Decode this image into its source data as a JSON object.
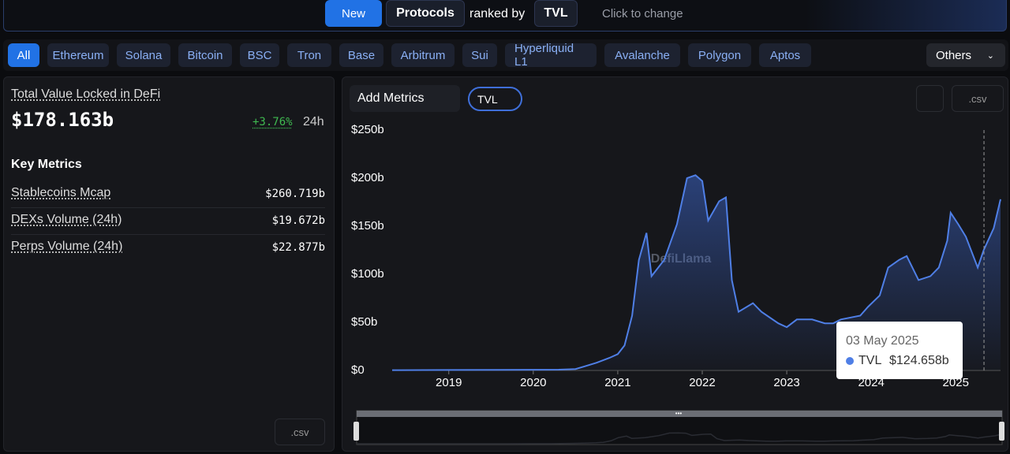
{
  "header": {
    "new": "New",
    "protocols": "Protocols",
    "ranked_by": "ranked by",
    "metric": "TVL",
    "hint": "Click to change"
  },
  "chains": [
    "All",
    "Ethereum",
    "Solana",
    "Bitcoin",
    "BSC",
    "Tron",
    "Base",
    "Arbitrum",
    "Sui",
    "Hyperliquid L1",
    "Avalanche",
    "Polygon",
    "Aptos"
  ],
  "others": "Others",
  "summary": {
    "title": "Total Value Locked in DeFi",
    "value": "$178.163b",
    "change": "+3.76%",
    "period": "24h",
    "key_metrics": "Key Metrics",
    "metrics": [
      {
        "label": "Stablecoins Mcap",
        "value": "$260.719b"
      },
      {
        "label": "DEXs Volume (24h)",
        "value": "$19.672b"
      },
      {
        "label": "Perps Volume (24h)",
        "value": "$22.877b"
      }
    ],
    "csv": ".csv"
  },
  "chart_panel": {
    "add_metrics": "Add Metrics",
    "toggle": "TVL",
    "csv": ".csv",
    "watermark": "DefiLlama"
  },
  "chart_data": {
    "type": "line",
    "x": [
      2018.33,
      2019,
      2020,
      2020.3,
      2020.5,
      2020.6,
      2020.75,
      2020.9,
      2021.0,
      2021.08,
      2021.17,
      2021.25,
      2021.34,
      2021.4,
      2021.55,
      2021.7,
      2021.82,
      2021.92,
      2022.0,
      2022.07,
      2022.2,
      2022.28,
      2022.35,
      2022.43,
      2022.6,
      2022.7,
      2022.9,
      2023.0,
      2023.12,
      2023.3,
      2023.45,
      2023.55,
      2023.64,
      2023.87,
      2023.96,
      2024.1,
      2024.2,
      2024.33,
      2024.42,
      2024.56,
      2024.7,
      2024.8,
      2024.9,
      2024.94,
      2025.03,
      2025.12,
      2025.26,
      2025.33,
      2025.45,
      2025.53
    ],
    "series": [
      {
        "name": "TVL",
        "color": "#4f7fe6",
        "values": [
          0.3,
          0.5,
          0.7,
          0.8,
          1.5,
          4,
          8,
          13,
          17,
          26,
          57,
          115,
          143,
          98,
          115,
          152,
          200,
          203,
          197,
          156,
          176,
          180,
          94,
          61,
          70,
          61,
          49,
          45,
          53,
          53,
          49,
          49,
          53,
          57,
          66,
          78,
          107,
          115,
          119,
          94,
          98,
          107,
          135,
          164,
          152,
          139,
          107,
          125,
          148,
          178
        ]
      }
    ],
    "xlim": [
      2018.33,
      2025.53
    ],
    "ylim": [
      0,
      250
    ],
    "xticks": [
      2019,
      2020,
      2021,
      2022,
      2023,
      2024,
      2025
    ],
    "yticks": [
      {
        "value": 0,
        "label": "$0"
      },
      {
        "value": 50,
        "label": "$50b"
      },
      {
        "value": 100,
        "label": "$100b"
      },
      {
        "value": 150,
        "label": "$150b"
      },
      {
        "value": 200,
        "label": "$200b"
      },
      {
        "value": 250,
        "label": "$250b"
      }
    ],
    "tooltip": {
      "date": "03 May 2025",
      "name": "TVL",
      "value": 124.658,
      "value_label": "$124.658b"
    }
  }
}
